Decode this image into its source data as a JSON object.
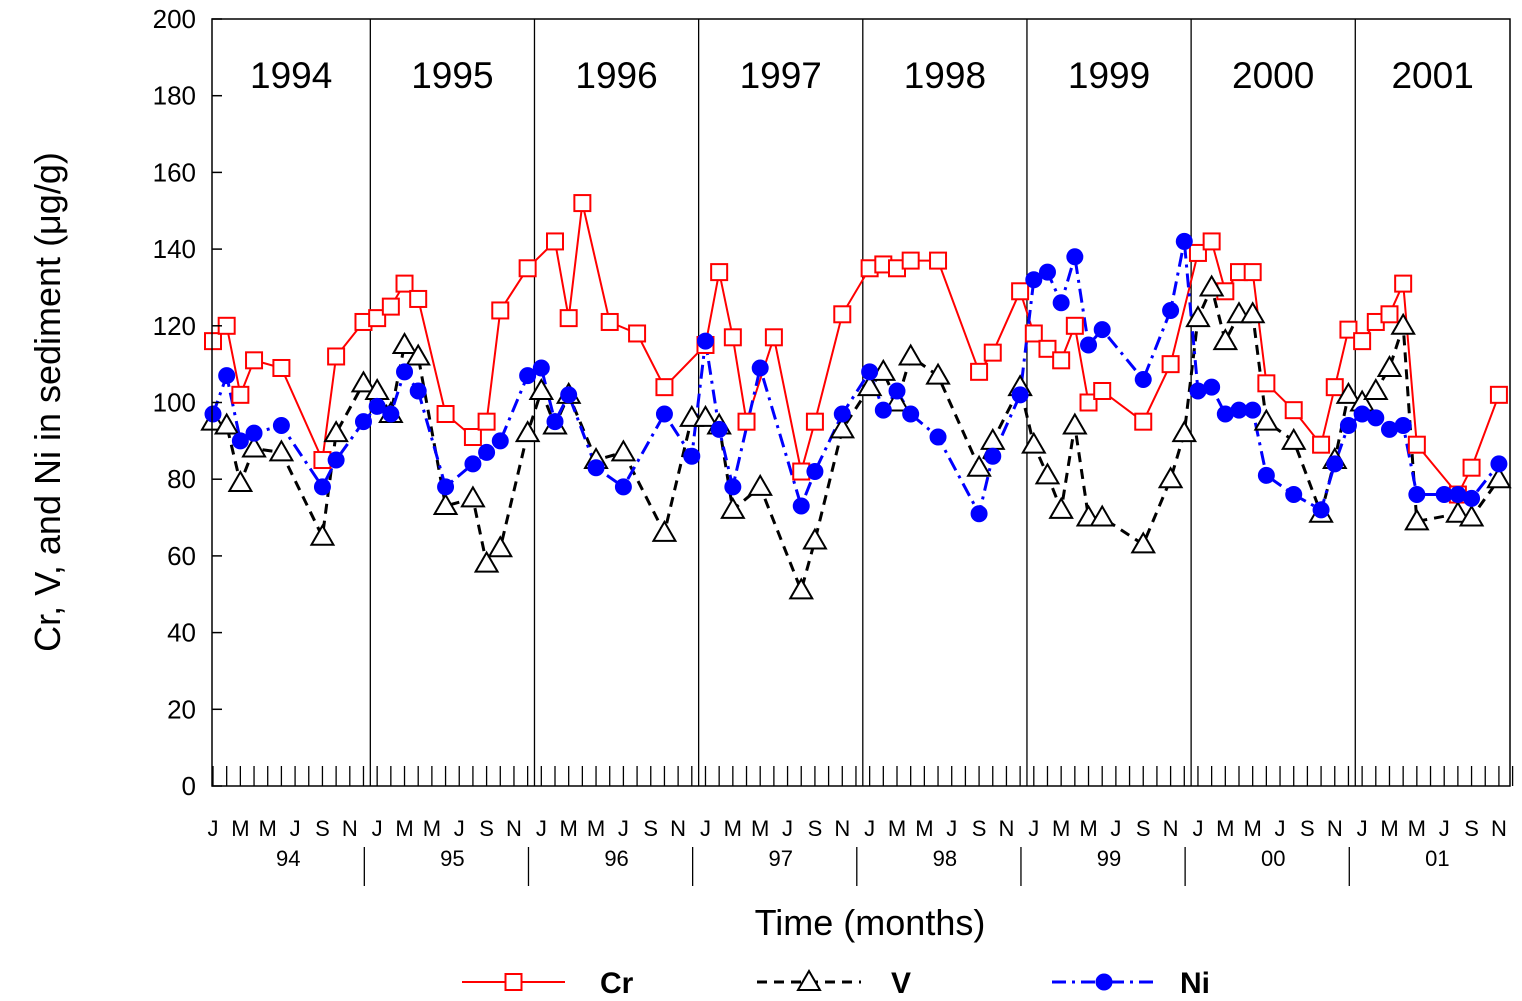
{
  "chart_data": {
    "type": "line",
    "ylabel": "Cr, V, and Ni in sediment (μg/g)",
    "xlabel": "Time (months)",
    "ylim": [
      0,
      200
    ],
    "y_ticks": [
      "0",
      "20",
      "40",
      "60",
      "80",
      "100",
      "120",
      "140",
      "160",
      "180",
      "200"
    ],
    "years": [
      "1994",
      "1995",
      "1996",
      "1997",
      "1998",
      "1999",
      "2000",
      "2001"
    ],
    "year_short": [
      "94",
      "95",
      "96",
      "97",
      "98",
      "99",
      "00",
      "01"
    ],
    "month_labels": [
      "J",
      "M",
      "M",
      "J",
      "S",
      "N"
    ],
    "x_unit": "month index from January 1994 (0 = Jan 1994)",
    "x_range": [
      0,
      96
    ],
    "legend_position": "bottom",
    "series": [
      {
        "name": "Cr",
        "color": "#ff0000",
        "marker": "open-square",
        "line": "solid",
        "points": [
          [
            0,
            116
          ],
          [
            1,
            120
          ],
          [
            2,
            102
          ],
          [
            3,
            111
          ],
          [
            5,
            109
          ],
          [
            8,
            85
          ],
          [
            9,
            112
          ],
          [
            11,
            121
          ],
          [
            12,
            122
          ],
          [
            13,
            125
          ],
          [
            14,
            131
          ],
          [
            15,
            127
          ],
          [
            17,
            97
          ],
          [
            19,
            91
          ],
          [
            20,
            95
          ],
          [
            21,
            124
          ],
          [
            23,
            135
          ],
          [
            25,
            142
          ],
          [
            26,
            122
          ],
          [
            27,
            152
          ],
          [
            29,
            121
          ],
          [
            31,
            118
          ],
          [
            33,
            104
          ],
          [
            36,
            115
          ],
          [
            37,
            134
          ],
          [
            38,
            117
          ],
          [
            39,
            95
          ],
          [
            41,
            117
          ],
          [
            43,
            82
          ],
          [
            44,
            95
          ],
          [
            46,
            123
          ],
          [
            48,
            135
          ],
          [
            49,
            136
          ],
          [
            50,
            135
          ],
          [
            51,
            137
          ],
          [
            53,
            137
          ],
          [
            56,
            108
          ],
          [
            57,
            113
          ],
          [
            59,
            129
          ],
          [
            60,
            118
          ],
          [
            61,
            114
          ],
          [
            62,
            111
          ],
          [
            63,
            120
          ],
          [
            64,
            100
          ],
          [
            65,
            103
          ],
          [
            68,
            95
          ],
          [
            70,
            110
          ],
          [
            72,
            139
          ],
          [
            73,
            142
          ],
          [
            74,
            129
          ],
          [
            75,
            134
          ],
          [
            76,
            134
          ],
          [
            77,
            105
          ],
          [
            79,
            98
          ],
          [
            81,
            89
          ],
          [
            82,
            104
          ],
          [
            83,
            119
          ],
          [
            84,
            116
          ],
          [
            85,
            121
          ],
          [
            86,
            123
          ],
          [
            87,
            131
          ],
          [
            88,
            89
          ],
          [
            91,
            76
          ],
          [
            92,
            83
          ],
          [
            94,
            102
          ]
        ]
      },
      {
        "name": "V",
        "color": "#000000",
        "marker": "open-triangle",
        "line": "dashed",
        "points": [
          [
            0,
            95
          ],
          [
            1,
            94
          ],
          [
            2,
            79
          ],
          [
            3,
            88
          ],
          [
            5,
            87
          ],
          [
            8,
            65
          ],
          [
            9,
            92
          ],
          [
            11,
            105
          ],
          [
            12,
            103
          ],
          [
            13,
            97
          ],
          [
            14,
            115
          ],
          [
            15,
            112
          ],
          [
            17,
            73
          ],
          [
            19,
            75
          ],
          [
            20,
            58
          ],
          [
            21,
            62
          ],
          [
            23,
            92
          ],
          [
            24,
            103
          ],
          [
            25,
            94
          ],
          [
            26,
            102
          ],
          [
            28,
            85
          ],
          [
            30,
            87
          ],
          [
            33,
            66
          ],
          [
            35,
            96
          ],
          [
            36,
            96
          ],
          [
            37,
            94
          ],
          [
            38,
            72
          ],
          [
            40,
            78
          ],
          [
            43,
            51
          ],
          [
            44,
            64
          ],
          [
            46,
            93
          ],
          [
            48,
            104
          ],
          [
            49,
            108
          ],
          [
            50,
            100
          ],
          [
            51,
            112
          ],
          [
            53,
            107
          ],
          [
            56,
            83
          ],
          [
            57,
            90
          ],
          [
            59,
            104
          ],
          [
            60,
            89
          ],
          [
            61,
            81
          ],
          [
            62,
            72
          ],
          [
            63,
            94
          ],
          [
            64,
            70
          ],
          [
            65,
            70
          ],
          [
            68,
            63
          ],
          [
            70,
            80
          ],
          [
            71,
            92
          ],
          [
            72,
            122
          ],
          [
            73,
            130
          ],
          [
            74,
            116
          ],
          [
            75,
            123
          ],
          [
            76,
            123
          ],
          [
            77,
            95
          ],
          [
            79,
            90
          ],
          [
            81,
            71
          ],
          [
            82,
            85
          ],
          [
            83,
            102
          ],
          [
            84,
            100
          ],
          [
            85,
            103
          ],
          [
            86,
            109
          ],
          [
            87,
            120
          ],
          [
            88,
            69
          ],
          [
            91,
            71
          ],
          [
            92,
            70
          ],
          [
            94,
            80
          ]
        ]
      },
      {
        "name": "Ni",
        "color": "#0000ff",
        "marker": "filled-circle",
        "line": "dash-dot",
        "points": [
          [
            0,
            97
          ],
          [
            1,
            107
          ],
          [
            2,
            90
          ],
          [
            3,
            92
          ],
          [
            5,
            94
          ],
          [
            8,
            78
          ],
          [
            9,
            85
          ],
          [
            11,
            95
          ],
          [
            12,
            99
          ],
          [
            13,
            97
          ],
          [
            14,
            108
          ],
          [
            15,
            103
          ],
          [
            17,
            78
          ],
          [
            19,
            84
          ],
          [
            20,
            87
          ],
          [
            21,
            90
          ],
          [
            23,
            107
          ],
          [
            24,
            109
          ],
          [
            25,
            95
          ],
          [
            26,
            102
          ],
          [
            28,
            83
          ],
          [
            30,
            78
          ],
          [
            33,
            97
          ],
          [
            35,
            86
          ],
          [
            36,
            116
          ],
          [
            37,
            93
          ],
          [
            38,
            78
          ],
          [
            40,
            109
          ],
          [
            43,
            73
          ],
          [
            44,
            82
          ],
          [
            46,
            97
          ],
          [
            48,
            108
          ],
          [
            49,
            98
          ],
          [
            50,
            103
          ],
          [
            51,
            97
          ],
          [
            53,
            91
          ],
          [
            56,
            71
          ],
          [
            57,
            86
          ],
          [
            59,
            102
          ],
          [
            60,
            132
          ],
          [
            61,
            134
          ],
          [
            62,
            126
          ],
          [
            63,
            138
          ],
          [
            64,
            115
          ],
          [
            65,
            119
          ],
          [
            68,
            106
          ],
          [
            70,
            124
          ],
          [
            71,
            142
          ],
          [
            72,
            103
          ],
          [
            73,
            104
          ],
          [
            74,
            97
          ],
          [
            75,
            98
          ],
          [
            76,
            98
          ],
          [
            77,
            81
          ],
          [
            79,
            76
          ],
          [
            81,
            72
          ],
          [
            82,
            84
          ],
          [
            83,
            94
          ],
          [
            84,
            97
          ],
          [
            85,
            96
          ],
          [
            86,
            93
          ],
          [
            87,
            94
          ],
          [
            88,
            76
          ],
          [
            90,
            76
          ],
          [
            91,
            76
          ],
          [
            92,
            75
          ],
          [
            94,
            84
          ]
        ]
      }
    ]
  }
}
